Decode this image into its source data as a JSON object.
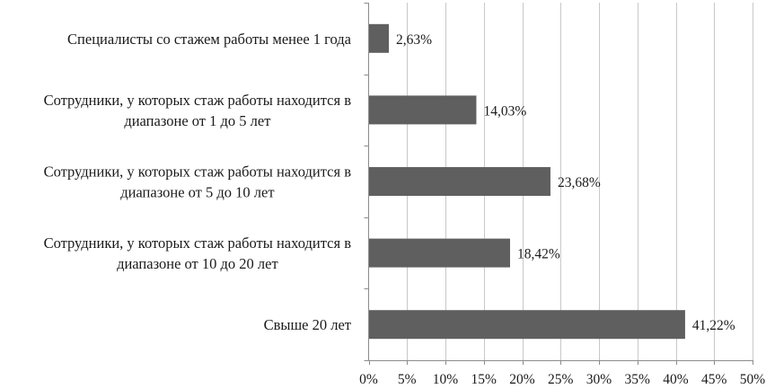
{
  "chart_data": {
    "type": "bar",
    "orientation": "horizontal",
    "categories": [
      [
        "Специалисты со стажем работы менее 1 года"
      ],
      [
        "Сотрудники, у которых стаж работы находится в",
        "диапазоне от 1 до 5 лет"
      ],
      [
        "Сотрудники, у которых стаж работы находится в",
        "диапазоне от 5 до 10 лет"
      ],
      [
        "Сотрудники, у которых стаж работы находится в",
        "диапазоне от 10 до 20 лет"
      ],
      [
        "Свыше 20 лет"
      ]
    ],
    "values": [
      2.63,
      14.03,
      23.68,
      18.42,
      41.22
    ],
    "value_labels": [
      "2,63%",
      "14,03%",
      "23,68%",
      "18,42%",
      "41,22%"
    ],
    "xlim": [
      0,
      50
    ],
    "x_ticks": [
      0,
      5,
      10,
      15,
      20,
      25,
      30,
      35,
      40,
      45,
      50
    ],
    "x_tick_labels": [
      "0%",
      "5%",
      "10%",
      "15%",
      "20%",
      "25%",
      "30%",
      "35%",
      "40%",
      "45%",
      "50%"
    ],
    "grid": true,
    "bar_color": "#5f5f5f",
    "title": "",
    "xlabel": "",
    "ylabel": ""
  }
}
